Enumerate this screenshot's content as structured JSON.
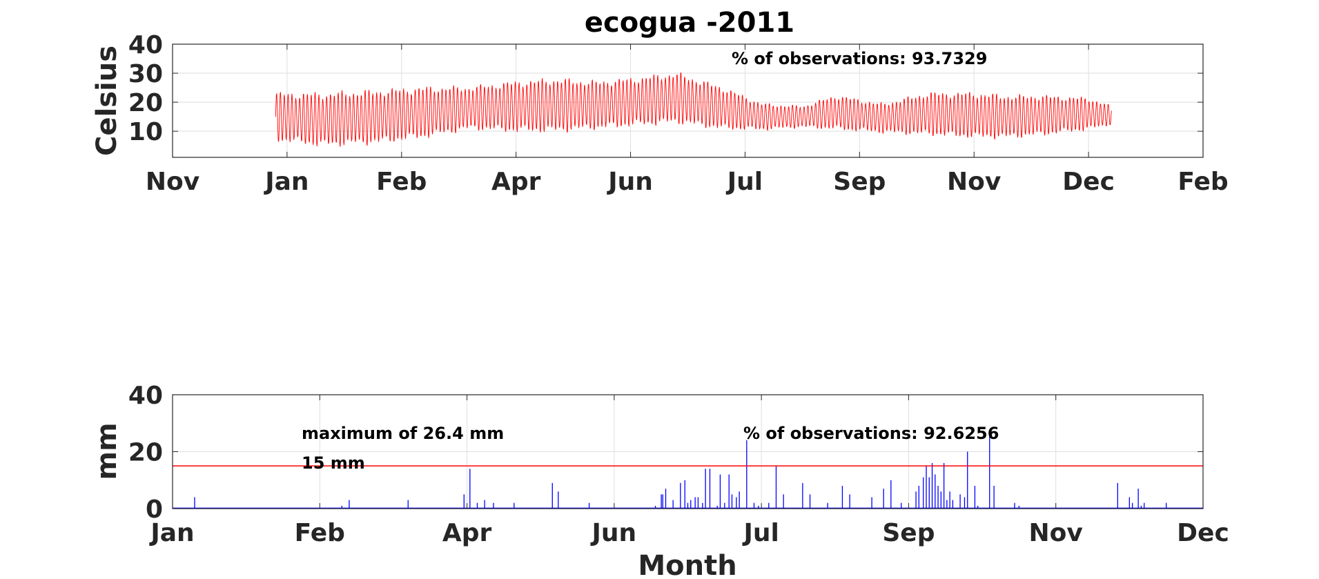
{
  "figure_title": "ecogua -2011",
  "colors": {
    "temperature": "#ff0000",
    "precipitation": "#0000ff",
    "threshold": "#ff0000"
  },
  "chart_data": [
    {
      "type": "line",
      "title": "ecogua -2011",
      "ylabel": "Celsius",
      "xlabel": "",
      "ylim": [
        1,
        40
      ],
      "yticks": [
        10,
        20,
        30,
        40
      ],
      "xticks": [
        "Nov",
        "Jan",
        "Feb",
        "Apr",
        "Jun",
        "Jul",
        "Sep",
        "Nov",
        "Dec",
        "Feb"
      ],
      "grid": true,
      "annotation": "% of observations: 93.7329",
      "series": [
        {
          "color": "#ff0000",
          "x_range_ticks": [
            0.9,
            8.2
          ],
          "envelope": {
            "x": [
              0.9,
              1.3,
              1.8,
              2.2,
              2.6,
              3.0,
              3.35,
              3.7,
              4.0,
              4.4,
              4.8,
              5.15,
              5.5,
              5.8,
              6.2,
              6.6,
              7.0,
              7.3,
              7.6,
              8.0,
              8.2
            ],
            "min": [
              6,
              4,
              5,
              7,
              10,
              9,
              9,
              10,
              11,
              12,
              10,
              10,
              11,
              10,
              9,
              8,
              7,
              7,
              8,
              10,
              12
            ],
            "max": [
              24,
              24,
              25,
              26,
              26,
              28,
              29,
              28,
              29,
              31,
              26,
              20,
              19,
              23,
              20,
              24,
              24,
              23,
              23,
              22,
              19
            ]
          }
        }
      ]
    },
    {
      "type": "bar",
      "title": "",
      "ylabel": "mm",
      "xlabel": "Month",
      "ylim": [
        0,
        40
      ],
      "yticks": [
        0,
        20,
        40
      ],
      "xticks": [
        "Jan",
        "Feb",
        "Apr",
        "Jun",
        "Jul",
        "Sep",
        "Nov",
        "Dec"
      ],
      "grid": true,
      "threshold": {
        "value": 15,
        "label": "15 mm"
      },
      "annotations": [
        "maximum of 26.4 mm",
        "% of observations: 92.6256"
      ],
      "series": [
        {
          "color": "#0000ff",
          "x": [
            0.15,
            1.15,
            1.2,
            1.6,
            1.98,
            2.02,
            2.07,
            2.12,
            2.18,
            2.32,
            2.58,
            2.62,
            2.83,
            3.28,
            3.32,
            3.33,
            3.35,
            3.4,
            3.45,
            3.48,
            3.5,
            3.52,
            3.55,
            3.57,
            3.6,
            3.62,
            3.65,
            3.7,
            3.72,
            3.75,
            3.78,
            3.8,
            3.83,
            3.85,
            3.9,
            3.95,
            3.98,
            4.05,
            4.1,
            4.15,
            4.28,
            4.33,
            4.45,
            4.55,
            4.6,
            4.75,
            4.83,
            4.88,
            4.95,
            5.05,
            5.07,
            5.1,
            5.12,
            5.14,
            5.16,
            5.18,
            5.2,
            5.22,
            5.24,
            5.26,
            5.28,
            5.3,
            5.35,
            5.38,
            5.4,
            5.45,
            5.47,
            5.55,
            5.58,
            5.72,
            5.75,
            6.42,
            6.5,
            6.52,
            6.56,
            6.58,
            6.6,
            6.75,
            8.2
          ],
          "values": [
            4,
            1,
            3,
            3,
            5,
            14,
            2,
            3,
            2,
            2,
            9,
            6,
            2,
            1,
            5,
            5,
            7,
            3,
            9,
            10,
            2,
            3,
            4,
            4,
            2,
            14,
            14,
            1,
            12,
            2,
            12,
            5,
            4,
            6,
            24,
            2,
            1,
            2,
            15,
            5,
            9,
            5,
            2,
            8,
            5,
            4,
            7,
            10,
            2,
            6,
            8,
            11,
            15,
            11,
            16,
            12,
            8,
            6,
            16,
            3,
            6,
            3,
            5,
            4,
            20,
            8,
            1,
            26,
            8,
            2,
            1,
            9,
            4,
            2,
            7,
            1,
            2,
            2,
            1
          ]
        }
      ]
    }
  ]
}
